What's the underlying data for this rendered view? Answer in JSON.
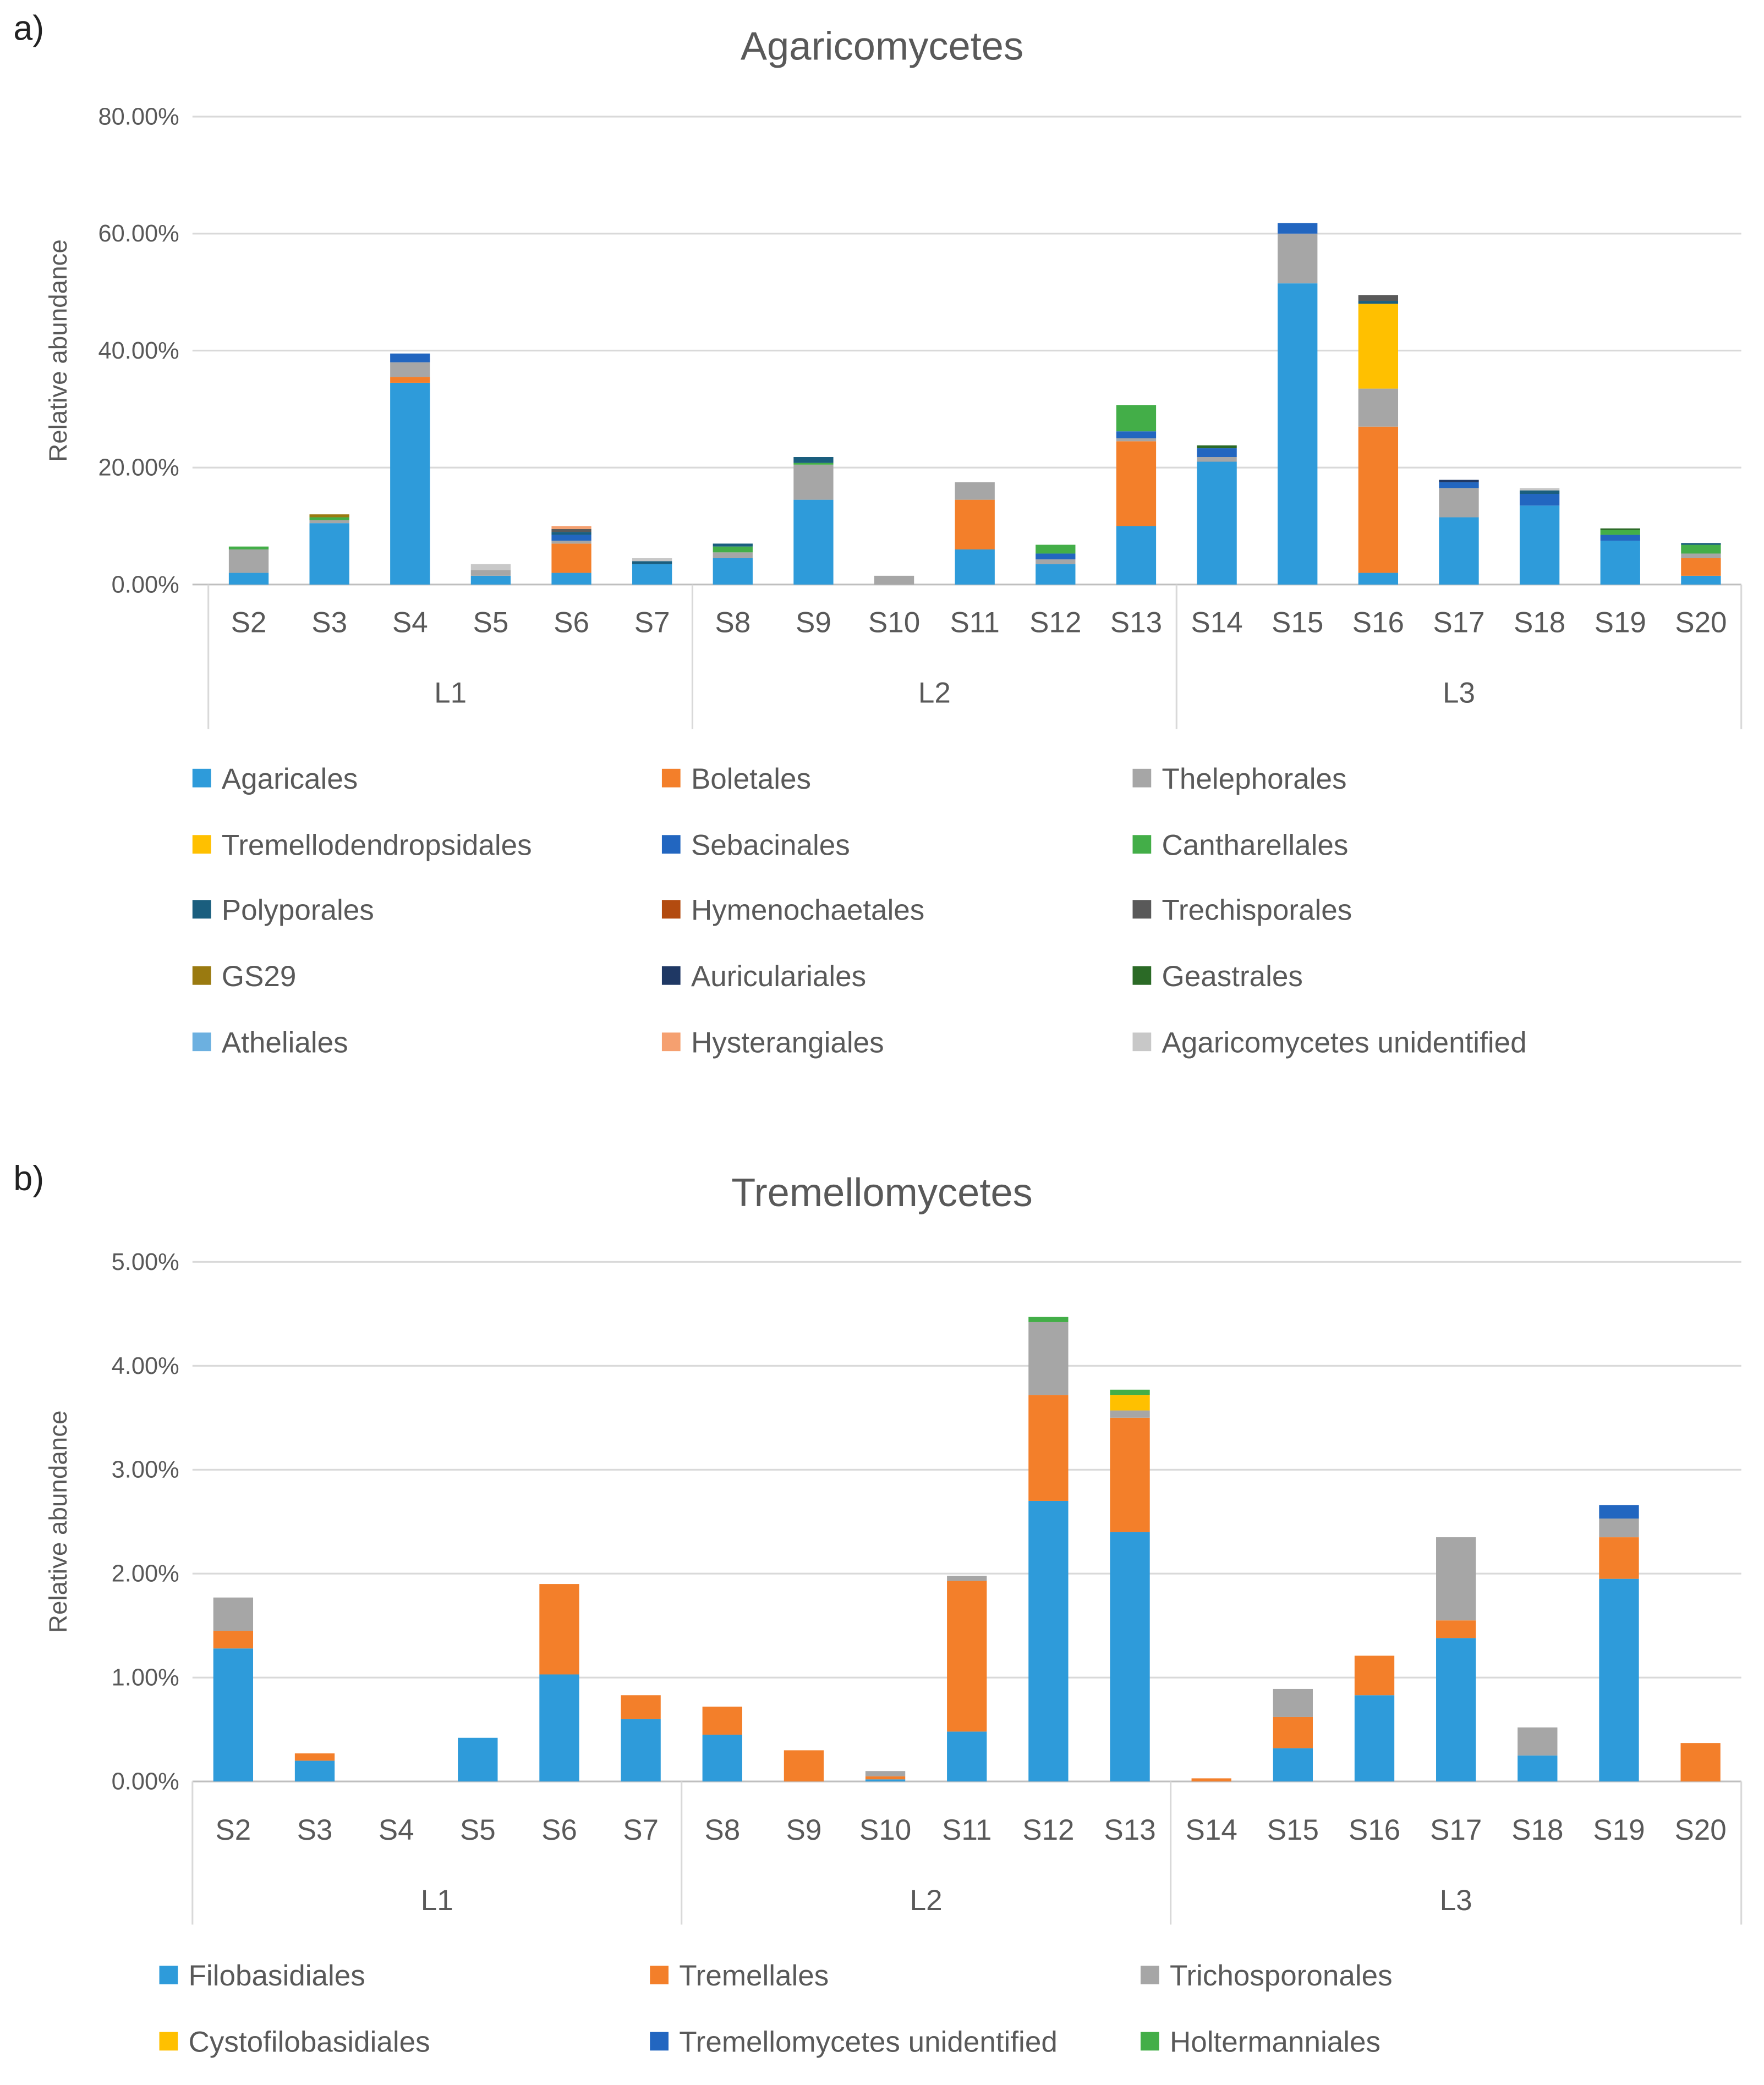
{
  "chart_data": [
    {
      "panel_label": "a)",
      "type": "bar",
      "stacked": true,
      "title": "Agaricomycetes",
      "ylabel": "Relative abundance",
      "xlabel": "",
      "ylim": [
        0,
        80
      ],
      "yticks": [
        "0.00%",
        "20.00%",
        "40.00%",
        "60.00%",
        "80.00%"
      ],
      "grid": true,
      "legend_position": "bottom",
      "categories": [
        "S2",
        "S3",
        "S4",
        "S5",
        "S6",
        "S7",
        "S8",
        "S9",
        "S10",
        "S11",
        "S12",
        "S13",
        "S14",
        "S15",
        "S16",
        "S17",
        "S18",
        "S19",
        "S20"
      ],
      "groups": [
        {
          "label": "L1",
          "span": 6
        },
        {
          "label": "L2",
          "span": 6
        },
        {
          "label": "L3",
          "span": 7
        }
      ],
      "series": [
        {
          "name": "Agaricales",
          "color": "#2E9BDA",
          "values": [
            2,
            10.5,
            34.5,
            1.5,
            2,
            3.5,
            4.5,
            14.5,
            0,
            6,
            3.5,
            10,
            21,
            51.5,
            2,
            11.5,
            13.5,
            7.5,
            1.5
          ]
        },
        {
          "name": "Boletales",
          "color": "#F37F2A",
          "values": [
            0,
            0,
            1,
            0,
            5,
            0,
            0,
            0,
            0,
            8.5,
            0,
            14.5,
            0,
            0,
            25,
            0,
            0,
            0,
            3
          ]
        },
        {
          "name": "Thelephorales",
          "color": "#A6A6A6",
          "values": [
            4,
            0.5,
            2.5,
            1,
            0.5,
            0,
            1,
            6,
            1.5,
            3,
            0.8,
            0.5,
            0.8,
            8.5,
            6.5,
            5,
            0,
            0,
            0.8
          ]
        },
        {
          "name": "Tremellodendropsidales",
          "color": "#FFC000",
          "values": [
            0,
            0,
            0,
            0,
            0,
            0,
            0,
            0,
            0,
            0,
            0,
            0,
            0,
            0,
            14.5,
            0,
            0,
            0,
            0
          ]
        },
        {
          "name": "Sebacinales",
          "color": "#2266C0",
          "values": [
            0,
            0,
            1.5,
            0,
            1,
            0,
            0,
            0,
            0,
            0,
            1,
            1.2,
            1.5,
            1.8,
            0,
            1,
            2,
            1,
            0
          ]
        },
        {
          "name": "Cantharellales",
          "color": "#43AE48",
          "values": [
            0.5,
            0.5,
            0,
            0,
            0,
            0,
            1,
            0.3,
            0,
            0,
            1.5,
            4.5,
            0,
            0,
            0,
            0,
            0,
            0.8,
            1.5
          ]
        },
        {
          "name": "Polyporales",
          "color": "#1A5E7E",
          "values": [
            0,
            0,
            0,
            0,
            0.5,
            0.5,
            0.5,
            1,
            0,
            0,
            0,
            0,
            0,
            0,
            0.5,
            0,
            0.6,
            0,
            0.3
          ]
        },
        {
          "name": "Hymenochaetales",
          "color": "#B34B0F",
          "values": [
            0,
            0,
            0,
            0,
            0,
            0,
            0,
            0,
            0,
            0,
            0,
            0,
            0,
            0,
            0,
            0,
            0,
            0,
            0
          ]
        },
        {
          "name": "Trechisporales",
          "color": "#595959",
          "values": [
            0,
            0,
            0,
            0,
            0.5,
            0,
            0,
            0,
            0,
            0,
            0,
            0,
            0,
            0,
            1,
            0,
            0,
            0,
            0
          ]
        },
        {
          "name": "GS29",
          "color": "#9A7A10",
          "values": [
            0,
            0.5,
            0,
            0,
            0,
            0,
            0,
            0,
            0,
            0,
            0,
            0,
            0,
            0,
            0,
            0,
            0,
            0,
            0
          ]
        },
        {
          "name": "Auriculariales",
          "color": "#1F3864",
          "values": [
            0,
            0,
            0,
            0,
            0,
            0,
            0,
            0,
            0,
            0,
            0,
            0,
            0,
            0,
            0,
            0.4,
            0,
            0,
            0
          ]
        },
        {
          "name": "Geastrales",
          "color": "#2B6A26",
          "values": [
            0,
            0,
            0,
            0,
            0,
            0,
            0,
            0,
            0,
            0,
            0,
            0,
            0.5,
            0,
            0,
            0,
            0,
            0.3,
            0
          ]
        },
        {
          "name": "Atheliales",
          "color": "#6CB0E0",
          "values": [
            0,
            0,
            0,
            0,
            0,
            0,
            0,
            0,
            0,
            0,
            0,
            0,
            0,
            0,
            0,
            0,
            0,
            0,
            0
          ]
        },
        {
          "name": "Hysterangiales",
          "color": "#F5A070",
          "values": [
            0,
            0,
            0,
            0,
            0.5,
            0,
            0,
            0,
            0,
            0,
            0,
            0,
            0,
            0,
            0,
            0,
            0,
            0,
            0
          ]
        },
        {
          "name": "Agaricomycetes unidentified",
          "color": "#C8C8C8",
          "values": [
            0,
            0,
            0,
            1,
            0,
            0.5,
            0,
            0,
            0,
            0,
            0,
            0,
            0,
            0,
            0,
            0,
            0.4,
            0,
            0
          ]
        }
      ]
    },
    {
      "panel_label": "b)",
      "type": "bar",
      "stacked": true,
      "title": "Tremellomycetes",
      "ylabel": "Relative abundance",
      "xlabel": "",
      "ylim": [
        0,
        5
      ],
      "yticks": [
        "0.00%",
        "1.00%",
        "2.00%",
        "3.00%",
        "4.00%",
        "5.00%"
      ],
      "grid": true,
      "legend_position": "bottom",
      "categories": [
        "S2",
        "S3",
        "S4",
        "S5",
        "S6",
        "S7",
        "S8",
        "S9",
        "S10",
        "S11",
        "S12",
        "S13",
        "S14",
        "S15",
        "S16",
        "S17",
        "S18",
        "S19",
        "S20"
      ],
      "groups": [
        {
          "label": "L1",
          "span": 6
        },
        {
          "label": "L2",
          "span": 6
        },
        {
          "label": "L3",
          "span": 7
        }
      ],
      "series": [
        {
          "name": "Filobasidiales",
          "color": "#2E9BDA",
          "values": [
            1.28,
            0.2,
            0,
            0.42,
            1.03,
            0.6,
            0.45,
            0,
            0.02,
            0.48,
            2.7,
            2.4,
            0,
            0.32,
            0.83,
            1.38,
            0.25,
            1.95,
            0
          ]
        },
        {
          "name": "Tremellales",
          "color": "#F37F2A",
          "values": [
            0.17,
            0.07,
            0,
            0,
            0.87,
            0.23,
            0.27,
            0.3,
            0.03,
            1.45,
            1.02,
            1.1,
            0.03,
            0.3,
            0.38,
            0.17,
            0,
            0.4,
            0.37
          ]
        },
        {
          "name": "Trichosporonales",
          "color": "#A6A6A6",
          "values": [
            0.32,
            0,
            0,
            0,
            0,
            0,
            0,
            0,
            0.05,
            0.05,
            0.7,
            0.07,
            0,
            0.27,
            0,
            0.8,
            0.27,
            0.18,
            0
          ]
        },
        {
          "name": "Cystofilobasidiales",
          "color": "#FFC000",
          "values": [
            0,
            0,
            0,
            0,
            0,
            0,
            0,
            0,
            0,
            0,
            0,
            0.15,
            0,
            0,
            0,
            0,
            0,
            0,
            0
          ]
        },
        {
          "name": "Tremellomycetes unidentified",
          "color": "#2266C0",
          "values": [
            0,
            0,
            0,
            0,
            0,
            0,
            0,
            0,
            0,
            0,
            0,
            0,
            0,
            0,
            0,
            0,
            0,
            0.13,
            0
          ]
        },
        {
          "name": "Holtermanniales",
          "color": "#43AE48",
          "values": [
            0,
            0,
            0,
            0,
            0,
            0,
            0,
            0,
            0,
            0,
            0.05,
            0.05,
            0,
            0,
            0,
            0,
            0,
            0,
            0
          ]
        }
      ]
    }
  ]
}
